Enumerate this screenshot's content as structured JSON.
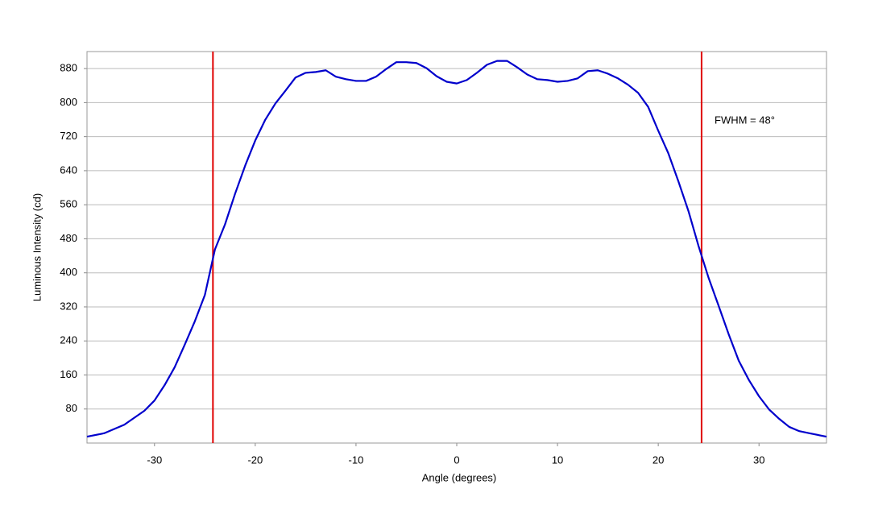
{
  "chart_data": {
    "type": "line",
    "x_label": "Angle (degrees)",
    "y_label": "Luminous Intensity (cd)",
    "annotation": "FWHM = 48°",
    "xlim": [
      -36.7,
      36.7
    ],
    "xticks": [
      -30,
      -20,
      -10,
      0,
      10,
      20,
      30
    ],
    "ylim": [
      0,
      920
    ],
    "yticks": [
      80,
      160,
      240,
      320,
      400,
      480,
      560,
      640,
      720,
      800,
      880
    ],
    "grid": true,
    "vlines": [
      -24.2,
      24.3
    ],
    "vline_color": "#e00000",
    "x": [
      -36.7,
      -35,
      -33,
      -31,
      -30,
      -29,
      -28,
      -27,
      -26,
      -25,
      -24,
      -23,
      -22,
      -21,
      -20,
      -19,
      -18,
      -17,
      -16,
      -15,
      -14,
      -13,
      -12,
      -11,
      -10,
      -9,
      -8,
      -7,
      -6,
      -5,
      -4,
      -3,
      -2,
      -1,
      0,
      1,
      2,
      3,
      4,
      5,
      6,
      7,
      8,
      9,
      10,
      11,
      12,
      13,
      14,
      15,
      16,
      17,
      18,
      19,
      20,
      21,
      22,
      23,
      24,
      25,
      26,
      27,
      28,
      29,
      30,
      31,
      32,
      33,
      34,
      35,
      36.7
    ],
    "series": [
      {
        "color": "#0000cc",
        "values": [
          15,
          23,
          43,
          76,
          100,
          136,
          178,
          231,
          286,
          348,
          455,
          514,
          586,
          652,
          711,
          760,
          798,
          828,
          859,
          870,
          872,
          876,
          861,
          855,
          851,
          851,
          861,
          879,
          895,
          895,
          893,
          881,
          862,
          849,
          845,
          853,
          870,
          889,
          898,
          898,
          883,
          866,
          855,
          853,
          849,
          851,
          857,
          874,
          876,
          868,
          857,
          842,
          823,
          790,
          734,
          681,
          615,
          545,
          463,
          388,
          322,
          255,
          193,
          148,
          110,
          79,
          57,
          38,
          28,
          23,
          15
        ]
      }
    ]
  }
}
